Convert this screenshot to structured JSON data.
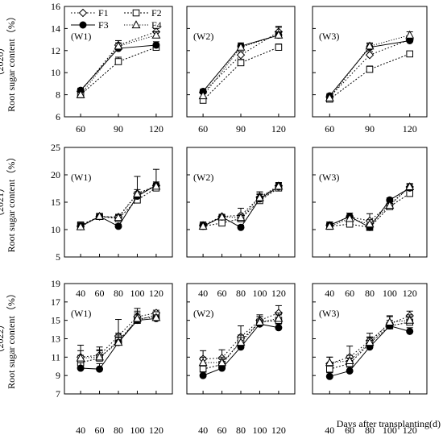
{
  "chart_data": [
    {
      "type": "line",
      "year_label": "（2020）",
      "ylabel": "Root sugar content（%）",
      "ylim": [
        6,
        16
      ],
      "yticks": [
        6,
        8,
        10,
        12,
        14,
        16
      ],
      "x": [
        60,
        90,
        120
      ],
      "xticks": [
        60,
        90,
        120
      ],
      "panels": [
        {
          "label": "(W1)",
          "series": [
            {
              "name": "F1",
              "values": [
                8.3,
                12.5,
                13.7
              ],
              "err": [
                0.2,
                0.4,
                0.3
              ]
            },
            {
              "name": "F2",
              "values": [
                8.0,
                11.0,
                12.3
              ],
              "err": [
                0.2,
                0.4,
                0.3
              ]
            },
            {
              "name": "F3",
              "values": [
                8.4,
                12.2,
                12.5
              ],
              "err": [
                0.2,
                0.5,
                0.3
              ]
            },
            {
              "name": "F4",
              "values": [
                8.0,
                12.4,
                13.4
              ],
              "err": [
                0.2,
                0.5,
                0.3
              ]
            }
          ]
        },
        {
          "label": "(W2)",
          "series": [
            {
              "name": "F1",
              "values": [
                8.2,
                11.6,
                13.7
              ],
              "err": [
                0.2,
                0.3,
                0.4
              ]
            },
            {
              "name": "F2",
              "values": [
                7.5,
                10.9,
                12.3
              ],
              "err": [
                0.2,
                0.3,
                0.3
              ]
            },
            {
              "name": "F3",
              "values": [
                8.3,
                12.4,
                13.4
              ],
              "err": [
                0.2,
                0.3,
                0.3
              ]
            },
            {
              "name": "F4",
              "values": [
                7.9,
                12.3,
                13.4
              ],
              "err": [
                0.2,
                0.3,
                0.8
              ]
            }
          ]
        },
        {
          "label": "(W3)",
          "series": [
            {
              "name": "F1",
              "values": [
                7.8,
                11.6,
                13.0
              ],
              "err": [
                0.2,
                0.3,
                0.2
              ]
            },
            {
              "name": "F2",
              "values": [
                7.6,
                10.3,
                11.7
              ],
              "err": [
                0.2,
                0.3,
                0.2
              ]
            },
            {
              "name": "F3",
              "values": [
                7.9,
                12.3,
                12.9
              ],
              "err": [
                0.2,
                0.3,
                0.3
              ]
            },
            {
              "name": "F4",
              "values": [
                7.7,
                12.4,
                13.4
              ],
              "err": [
                0.2,
                0.3,
                0.3
              ]
            }
          ]
        }
      ]
    },
    {
      "type": "line",
      "year_label": "（2021）",
      "ylabel": "Root sugar content（%）",
      "ylim": [
        5,
        25
      ],
      "yticks": [
        5,
        10,
        15,
        20,
        25
      ],
      "x": [
        40,
        60,
        80,
        100,
        120
      ],
      "xticks": [
        40,
        60,
        80,
        100,
        120
      ],
      "panels": [
        {
          "label": "(W1)",
          "series": [
            {
              "name": "F1",
              "values": [
                10.6,
                12.4,
                12.3,
                16.6,
                18.0
              ],
              "err": [
                0.6,
                0.4,
                0.4,
                3.1,
                3.0
              ]
            },
            {
              "name": "F2",
              "values": [
                10.8,
                12.4,
                12.0,
                15.4,
                17.6
              ],
              "err": [
                0.6,
                0.4,
                0.5,
                0.8,
                0.6
              ]
            },
            {
              "name": "F3",
              "values": [
                10.6,
                12.4,
                10.6,
                16.1,
                18.1
              ],
              "err": [
                0.6,
                0.4,
                0.4,
                0.8,
                0.6
              ]
            },
            {
              "name": "F4",
              "values": [
                10.5,
                12.4,
                12.2,
                16.5,
                17.9
              ],
              "err": [
                0.6,
                0.4,
                0.6,
                0.8,
                0.6
              ]
            }
          ]
        },
        {
          "label": "(W2)",
          "series": [
            {
              "name": "F1",
              "values": [
                10.8,
                12.4,
                12.6,
                15.9,
                18.0
              ],
              "err": [
                0.6,
                0.4,
                1.3,
                1.0,
                0.6
              ]
            },
            {
              "name": "F2",
              "values": [
                10.6,
                11.2,
                12.0,
                15.3,
                17.6
              ],
              "err": [
                0.6,
                0.4,
                0.6,
                0.8,
                0.6
              ]
            },
            {
              "name": "F3",
              "values": [
                10.6,
                12.3,
                10.4,
                15.6,
                17.8
              ],
              "err": [
                0.6,
                0.4,
                0.4,
                0.8,
                0.6
              ]
            },
            {
              "name": "F4",
              "values": [
                10.6,
                12.3,
                12.2,
                15.8,
                17.9
              ],
              "err": [
                0.6,
                0.4,
                0.6,
                0.8,
                0.6
              ]
            }
          ]
        },
        {
          "label": "(W3)",
          "series": [
            {
              "name": "F1",
              "values": [
                10.8,
                12.3,
                11.6,
                14.6,
                17.8
              ],
              "err": [
                0.6,
                0.7,
                1.3,
                0.8,
                0.6
              ]
            },
            {
              "name": "F2",
              "values": [
                10.6,
                11.0,
                10.4,
                14.2,
                16.6
              ],
              "err": [
                0.6,
                0.6,
                0.6,
                0.8,
                0.6
              ]
            },
            {
              "name": "F3",
              "values": [
                10.8,
                12.4,
                10.4,
                15.4,
                17.6
              ],
              "err": [
                0.6,
                0.6,
                0.4,
                0.4,
                0.6
              ]
            },
            {
              "name": "F4",
              "values": [
                10.6,
                12.0,
                11.0,
                14.4,
                17.8
              ],
              "err": [
                0.6,
                0.6,
                0.8,
                0.8,
                0.6
              ]
            }
          ]
        }
      ]
    },
    {
      "type": "line",
      "year_label": "（2022）",
      "ylabel": "Root sugar content（%）",
      "ylim": [
        7,
        19
      ],
      "yticks": [
        7,
        9,
        11,
        13,
        15,
        17,
        19
      ],
      "x": [
        40,
        60,
        80,
        100,
        120
      ],
      "xticks": [
        40,
        60,
        80,
        100,
        120
      ],
      "xlabel": "Days after transplanting(d)",
      "panels": [
        {
          "label": "(W1)",
          "series": [
            {
              "name": "F1",
              "values": [
                11.0,
                11.2,
                13.3,
                15.4,
                15.8
              ],
              "err": [
                1.3,
                0.9,
                1.8,
                0.9,
                0.3
              ]
            },
            {
              "name": "F2",
              "values": [
                10.4,
                10.9,
                12.8,
                15.0,
                15.6
              ],
              "err": [
                0.8,
                0.8,
                0.8,
                0.8,
                0.3
              ]
            },
            {
              "name": "F3",
              "values": [
                9.8,
                9.7,
                12.6,
                15.0,
                15.2
              ],
              "err": [
                0.6,
                0.6,
                0.6,
                0.6,
                0.3
              ]
            },
            {
              "name": "F4",
              "values": [
                10.9,
                11.0,
                12.6,
                15.2,
                15.3
              ],
              "err": [
                0.8,
                0.8,
                0.8,
                0.8,
                0.3
              ]
            }
          ]
        },
        {
          "label": "(W2)",
          "series": [
            {
              "name": "F1",
              "values": [
                10.8,
                10.9,
                13.2,
                15.0,
                15.8
              ],
              "err": [
                0.9,
                0.9,
                1.2,
                0.6,
                0.8
              ]
            },
            {
              "name": "F2",
              "values": [
                9.7,
                10.2,
                12.8,
                14.8,
                15.0
              ],
              "err": [
                0.6,
                0.6,
                0.6,
                0.6,
                0.6
              ]
            },
            {
              "name": "F3",
              "values": [
                9.0,
                9.8,
                12.1,
                14.6,
                14.2
              ],
              "err": [
                0.4,
                0.4,
                0.4,
                0.4,
                0.4
              ]
            },
            {
              "name": "F4",
              "values": [
                10.4,
                10.4,
                12.6,
                14.8,
                15.2
              ],
              "err": [
                0.6,
                0.6,
                0.8,
                0.6,
                0.6
              ]
            }
          ]
        },
        {
          "label": "(W3)",
          "series": [
            {
              "name": "F1",
              "values": [
                10.3,
                11.0,
                12.8,
                14.6,
                15.5
              ],
              "err": [
                0.7,
                1.2,
                0.8,
                0.9,
                0.5
              ]
            },
            {
              "name": "F2",
              "values": [
                9.7,
                10.3,
                12.5,
                14.4,
                14.8
              ],
              "err": [
                0.6,
                0.6,
                0.6,
                0.6,
                0.6
              ]
            },
            {
              "name": "F3",
              "values": [
                8.9,
                9.5,
                12.1,
                14.4,
                13.8
              ],
              "err": [
                0.4,
                0.4,
                0.4,
                0.4,
                0.4
              ]
            },
            {
              "name": "F4",
              "values": [
                10.4,
                10.6,
                12.6,
                14.8,
                15.0
              ],
              "err": [
                0.6,
                0.6,
                0.6,
                0.6,
                0.6
              ]
            }
          ]
        }
      ]
    }
  ],
  "legend": {
    "position": "top-left",
    "entries": [
      {
        "name": "F1",
        "marker": "diamond-open",
        "line": "dotted"
      },
      {
        "name": "F2",
        "marker": "square-open",
        "line": "dotted"
      },
      {
        "name": "F3",
        "marker": "circle-filled",
        "line": "solid"
      },
      {
        "name": "F4",
        "marker": "triangle-open",
        "line": "dotted"
      }
    ]
  },
  "series_styles": {
    "F1": {
      "marker": "diamond-open",
      "dash": "1.6,2.4"
    },
    "F2": {
      "marker": "square-open",
      "dash": "2,2"
    },
    "F3": {
      "marker": "circle-filled",
      "dash": ""
    },
    "F4": {
      "marker": "triangle-open",
      "dash": "1.2,2"
    }
  },
  "grid": false,
  "colors": {
    "ink": "#000000",
    "background": "#ffffff"
  }
}
